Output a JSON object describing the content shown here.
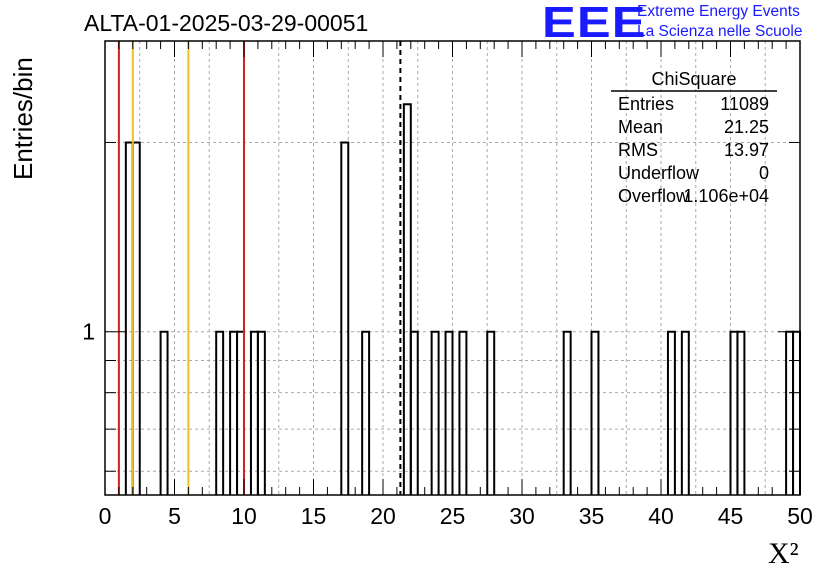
{
  "title": "ALTA-01-2025-03-29-00051",
  "logo": {
    "mark": "EEE",
    "line1": "Extreme Energy Events",
    "line2": "La Scienza nelle Scuole",
    "color": "#1a1aff"
  },
  "stats": {
    "name": "ChiSquare",
    "rows": [
      {
        "label": "Entries",
        "value": "11089"
      },
      {
        "label": "Mean",
        "value": "21.25"
      },
      {
        "label": "RMS",
        "value": "13.97"
      },
      {
        "label": "Underflow",
        "value": "0"
      },
      {
        "label": "Overflow",
        "value": "1.106e+04"
      }
    ]
  },
  "chart_data": {
    "type": "bar",
    "xlabel": "X²",
    "ylabel": "Entries/bin",
    "xlim": [
      0,
      50
    ],
    "ylog": true,
    "ylim": [
      0.55,
      2.9
    ],
    "bin_width": 0.5,
    "x_ticks": [
      "0",
      "5",
      "10",
      "15",
      "20",
      "25",
      "30",
      "35",
      "40",
      "45",
      "50"
    ],
    "y_tick_labels": [
      {
        "value": 1,
        "label": "1"
      }
    ],
    "grid": true,
    "bins": [
      {
        "x": 1.5,
        "y": 2
      },
      {
        "x": 2.0,
        "y": 2
      },
      {
        "x": 4.0,
        "y": 1
      },
      {
        "x": 8.0,
        "y": 1
      },
      {
        "x": 9.0,
        "y": 1
      },
      {
        "x": 9.5,
        "y": 1
      },
      {
        "x": 10.5,
        "y": 1
      },
      {
        "x": 11.0,
        "y": 1
      },
      {
        "x": 17.0,
        "y": 2
      },
      {
        "x": 18.5,
        "y": 1
      },
      {
        "x": 21.5,
        "y": 2.3
      },
      {
        "x": 22.0,
        "y": 1
      },
      {
        "x": 23.5,
        "y": 1
      },
      {
        "x": 24.5,
        "y": 1
      },
      {
        "x": 25.5,
        "y": 1
      },
      {
        "x": 27.5,
        "y": 1
      },
      {
        "x": 33.0,
        "y": 1
      },
      {
        "x": 35.0,
        "y": 1
      },
      {
        "x": 40.5,
        "y": 1
      },
      {
        "x": 41.5,
        "y": 1
      },
      {
        "x": 45.0,
        "y": 1
      },
      {
        "x": 45.5,
        "y": 1
      },
      {
        "x": 49.0,
        "y": 1
      },
      {
        "x": 49.5,
        "y": 1
      }
    ],
    "vertical_lines": [
      {
        "x": 1.0,
        "color": "#d42020",
        "style": "solid"
      },
      {
        "x": 2.0,
        "color": "#f0c020",
        "style": "solid"
      },
      {
        "x": 6.0,
        "color": "#f0c020",
        "style": "solid"
      },
      {
        "x": 10.0,
        "color": "#d42020",
        "style": "solid"
      },
      {
        "x": 21.25,
        "color": "#000000",
        "style": "dashed"
      }
    ]
  }
}
